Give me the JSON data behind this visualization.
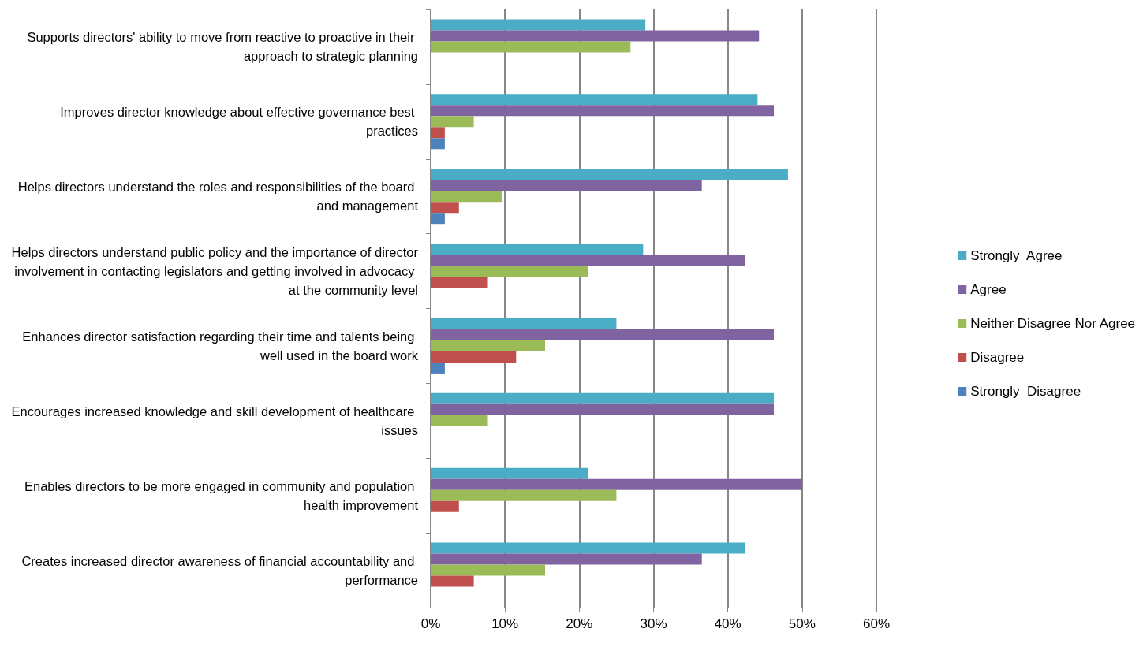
{
  "chart_data": {
    "type": "bar",
    "orientation": "horizontal",
    "categories": [
      "Supports directors' ability to move from reactive to proactive in their approach to strategic planning",
      "Improves director knowledge about effective governance best practices",
      "Helps directors understand the roles and responsibilities of the board and management",
      "Helps directors understand public policy and the importance of director involvement in contacting legislators and getting involved in advocacy at the community level",
      "Enhances director satisfaction regarding their time and talents being well used in the board work",
      "Encourages increased knowledge and skill development of healthcare issues",
      "Enables directors to be more engaged in community and population health improvement",
      "Creates increased director awareness of financial accountability and performance"
    ],
    "series": [
      {
        "name": "Strongly  Agree",
        "color": "#4bacc6",
        "values": [
          28.9,
          44.0,
          48.1,
          28.6,
          25.0,
          46.2,
          21.2,
          42.3
        ]
      },
      {
        "name": "Agree",
        "color": "#8064a2",
        "values": [
          44.2,
          46.2,
          36.5,
          42.3,
          46.2,
          46.2,
          50.0,
          36.5
        ]
      },
      {
        "name": "Neither Disagree Nor Agree",
        "color": "#9bbb59",
        "values": [
          26.9,
          5.8,
          9.6,
          21.2,
          15.4,
          7.7,
          25.0,
          15.4
        ]
      },
      {
        "name": "Disagree",
        "color": "#c0504d",
        "values": [
          null,
          1.9,
          3.8,
          7.7,
          11.5,
          null,
          3.8,
          5.8
        ]
      },
      {
        "name": "Strongly  Disagree",
        "color": "#4f81bd",
        "values": [
          null,
          1.9,
          1.9,
          null,
          1.9,
          null,
          null,
          null
        ]
      }
    ],
    "xlim": [
      0,
      60
    ],
    "xticks": [
      {
        "value": 0,
        "label": "0%"
      },
      {
        "value": 10,
        "label": "10%"
      },
      {
        "value": 20,
        "label": "20%"
      },
      {
        "value": 30,
        "label": "30%"
      },
      {
        "value": 40,
        "label": "40%"
      },
      {
        "value": 50,
        "label": "50%"
      },
      {
        "value": 60,
        "label": "60%"
      }
    ],
    "grid": "x",
    "legend": "right"
  }
}
